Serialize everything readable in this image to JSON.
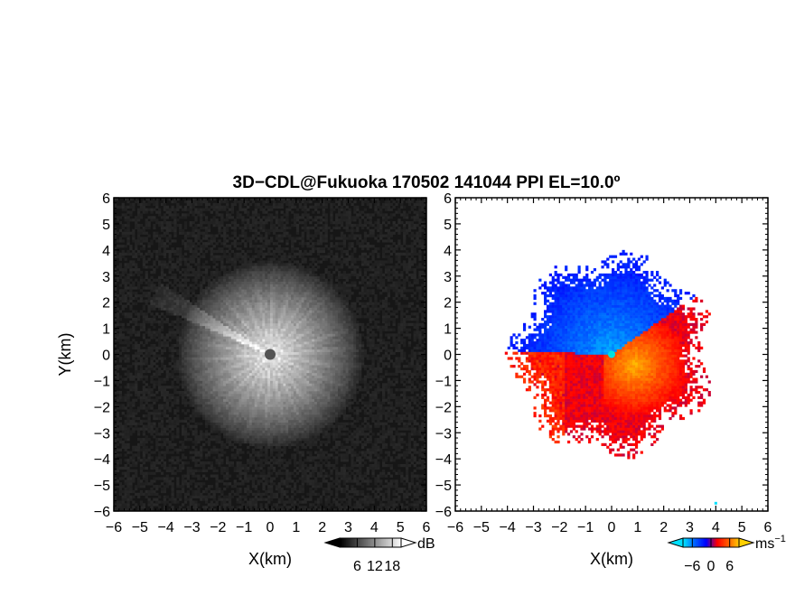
{
  "title": "3D−CDL@Fukuoka 170502 141044 PPI EL=10.0º",
  "chart_data": [
    {
      "type": "heatmap",
      "name": "reflectivity",
      "xlabel": "X(km)",
      "ylabel": "Y(km)",
      "xlim": [
        -6,
        6
      ],
      "ylim": [
        -6,
        6
      ],
      "xticks": [
        -6,
        -5,
        -4,
        -3,
        -2,
        -1,
        0,
        1,
        2,
        3,
        4,
        5,
        6
      ],
      "yticks": [
        -6,
        -5,
        -4,
        -3,
        -2,
        -1,
        0,
        1,
        2,
        3,
        4,
        5,
        6
      ],
      "xtick_labels": [
        "−6",
        "−5",
        "−4",
        "−3",
        "−2",
        "−1",
        "0",
        "1",
        "2",
        "3",
        "4",
        "5",
        "6"
      ],
      "ytick_labels": [
        "−6",
        "−5",
        "−4",
        "−3",
        "−2",
        "−1",
        "0",
        "1",
        "2",
        "3",
        "4",
        "5",
        "6"
      ],
      "colorbar": {
        "unit": "dB",
        "tick_values": [
          6,
          12,
          18
        ],
        "tick_labels": [
          "6",
          "12",
          "18"
        ],
        "range": [
          0,
          21
        ]
      },
      "colormap": [
        "#000000",
        "#ffffff"
      ],
      "background": "#161616",
      "echo_radius_km": 3.2,
      "beam_feature": {
        "direction_deg_from_north": 298,
        "length_km": 5.0
      },
      "center_marker_color": "#555555"
    },
    {
      "type": "heatmap",
      "name": "doppler-velocity",
      "xlabel": "X(km)",
      "ylabel": "",
      "xlim": [
        -6,
        6
      ],
      "ylim": [
        -6,
        6
      ],
      "xticks": [
        -6,
        -5,
        -4,
        -3,
        -2,
        -1,
        0,
        1,
        2,
        3,
        4,
        5,
        6
      ],
      "yticks": [
        -6,
        -5,
        -4,
        -3,
        -2,
        -1,
        0,
        1,
        2,
        3,
        4,
        5,
        6
      ],
      "xtick_labels": [
        "−6",
        "−5",
        "−4",
        "−3",
        "−2",
        "−1",
        "0",
        "1",
        "2",
        "3",
        "4",
        "5",
        "6"
      ],
      "ytick_labels": [
        "−6",
        "−5",
        "−4",
        "−3",
        "−2",
        "−1",
        "0",
        "1",
        "2",
        "3",
        "4",
        "5",
        "6"
      ],
      "colorbar": {
        "unit": "ms",
        "unit_exponent": "−1",
        "tick_values": [
          -6,
          0,
          6
        ],
        "tick_labels": [
          "−6",
          "0",
          "6"
        ],
        "range": [
          -9,
          9
        ]
      },
      "colormap": [
        "#00e0ff",
        "#0060ff",
        "#0000ff",
        "#ff0000",
        "#ff6000",
        "#ffd000"
      ],
      "echo_radius_km": 3.3,
      "approaching_sector_deg": [
        270,
        60
      ],
      "outlier_point": [
        4.0,
        -5.7
      ],
      "center_marker_color": "#00e0e0"
    }
  ]
}
